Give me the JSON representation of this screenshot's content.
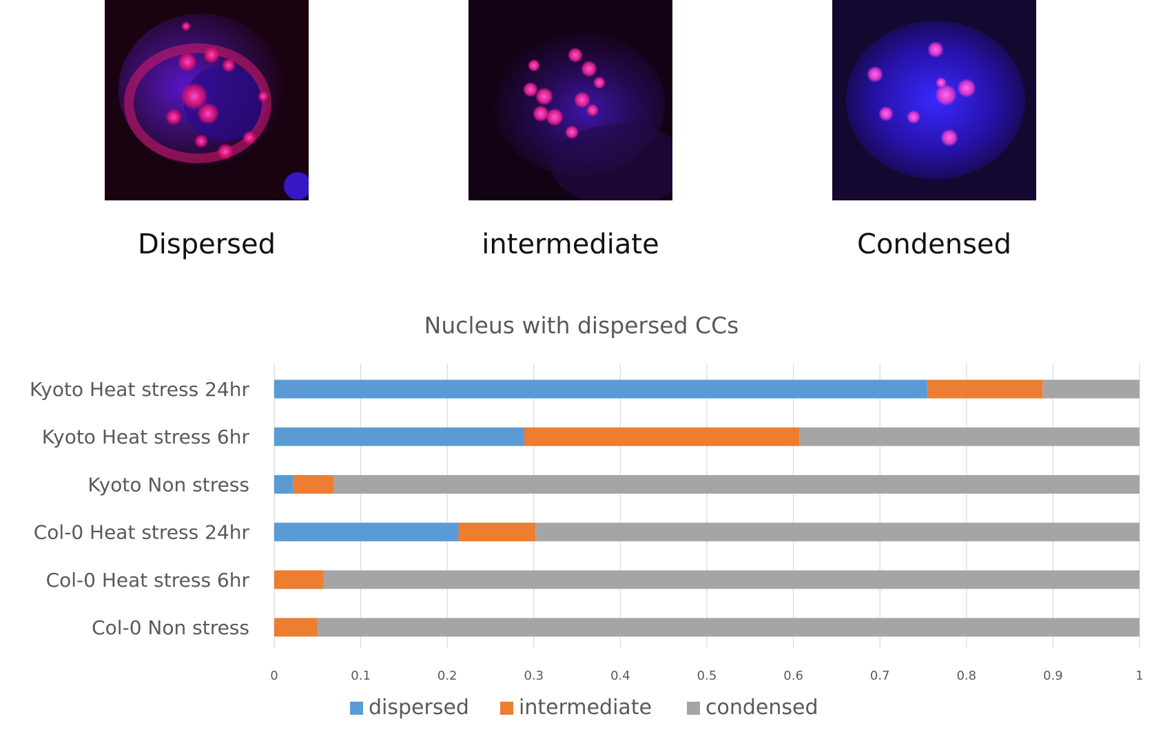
{
  "micrographs": [
    {
      "label": "Dispersed",
      "icon": "dispersed-nucleus-micrograph"
    },
    {
      "label": "intermediate",
      "icon": "intermediate-nucleus-micrograph"
    },
    {
      "label": "Condensed",
      "icon": "condensed-nucleus-micrograph"
    }
  ],
  "chart_data": {
    "type": "bar",
    "orientation": "horizontal",
    "stacked": true,
    "title": "Nucleus with dispersed CCs",
    "xlabel": "",
    "ylabel": "",
    "xlim": [
      0,
      1
    ],
    "xticks": [
      "0",
      "0.1",
      "0.2",
      "0.3",
      "0.4",
      "0.5",
      "0.6",
      "0.7",
      "0.8",
      "0.9",
      "1"
    ],
    "grid": "vertical",
    "legend_position": "bottom",
    "categories": [
      "Kyoto Heat stress 24hr",
      "Kyoto Heat stress 6hr",
      "Kyoto Non stress",
      "Col-0 Heat stress 24hr",
      "Col-0 Heat stress 6hr",
      "Col-0 Non stress"
    ],
    "series": [
      {
        "name": "dispersed",
        "color": "#5B9BD5",
        "values": [
          0.755,
          0.289,
          0.022,
          0.213,
          0.0,
          0.0
        ]
      },
      {
        "name": "intermediate",
        "color": "#ED7D31",
        "values": [
          0.133,
          0.318,
          0.047,
          0.089,
          0.057,
          0.05
        ]
      },
      {
        "name": "condensed",
        "color": "#A5A5A5",
        "values": [
          0.112,
          0.393,
          0.931,
          0.698,
          0.943,
          0.95
        ]
      }
    ]
  }
}
